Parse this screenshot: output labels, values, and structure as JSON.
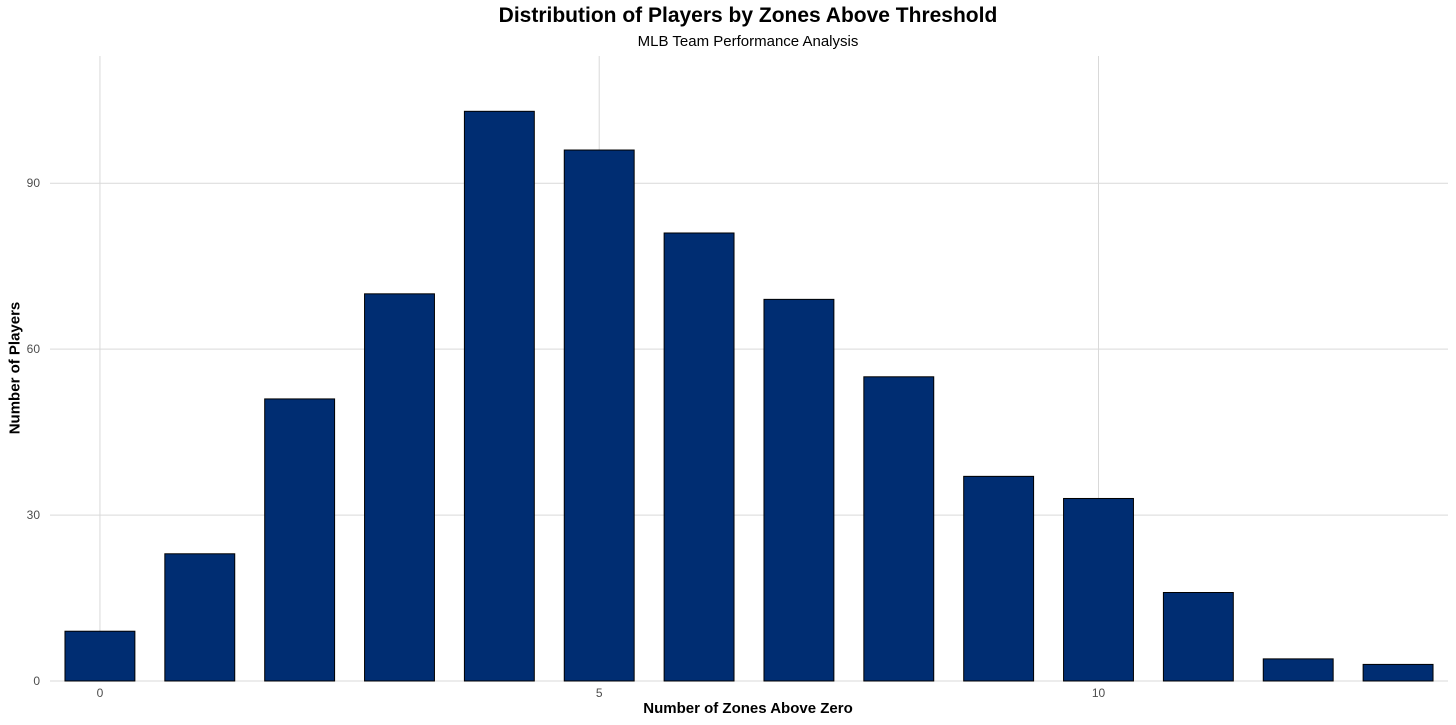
{
  "chart_data": {
    "type": "bar",
    "title": "Distribution of Players by Zones Above Threshold",
    "subtitle": "MLB Team Performance Analysis",
    "xlabel": "Number of Zones Above Zero",
    "ylabel": "Number of Players",
    "x": [
      0,
      1,
      2,
      3,
      4,
      5,
      6,
      7,
      8,
      9,
      10,
      11,
      12,
      13
    ],
    "values": [
      9,
      23,
      51,
      70,
      103,
      96,
      81,
      69,
      55,
      37,
      33,
      16,
      4,
      3
    ],
    "xlim": [
      -0.5,
      13.5
    ],
    "ylim": [
      0,
      113
    ],
    "x_ticks": [
      0,
      5,
      10
    ],
    "y_ticks": [
      0,
      30,
      60,
      90
    ],
    "grid": true,
    "bar_color": "#002D72",
    "bar_edge_color": "#000000",
    "grid_color": "#d9d9d9"
  }
}
